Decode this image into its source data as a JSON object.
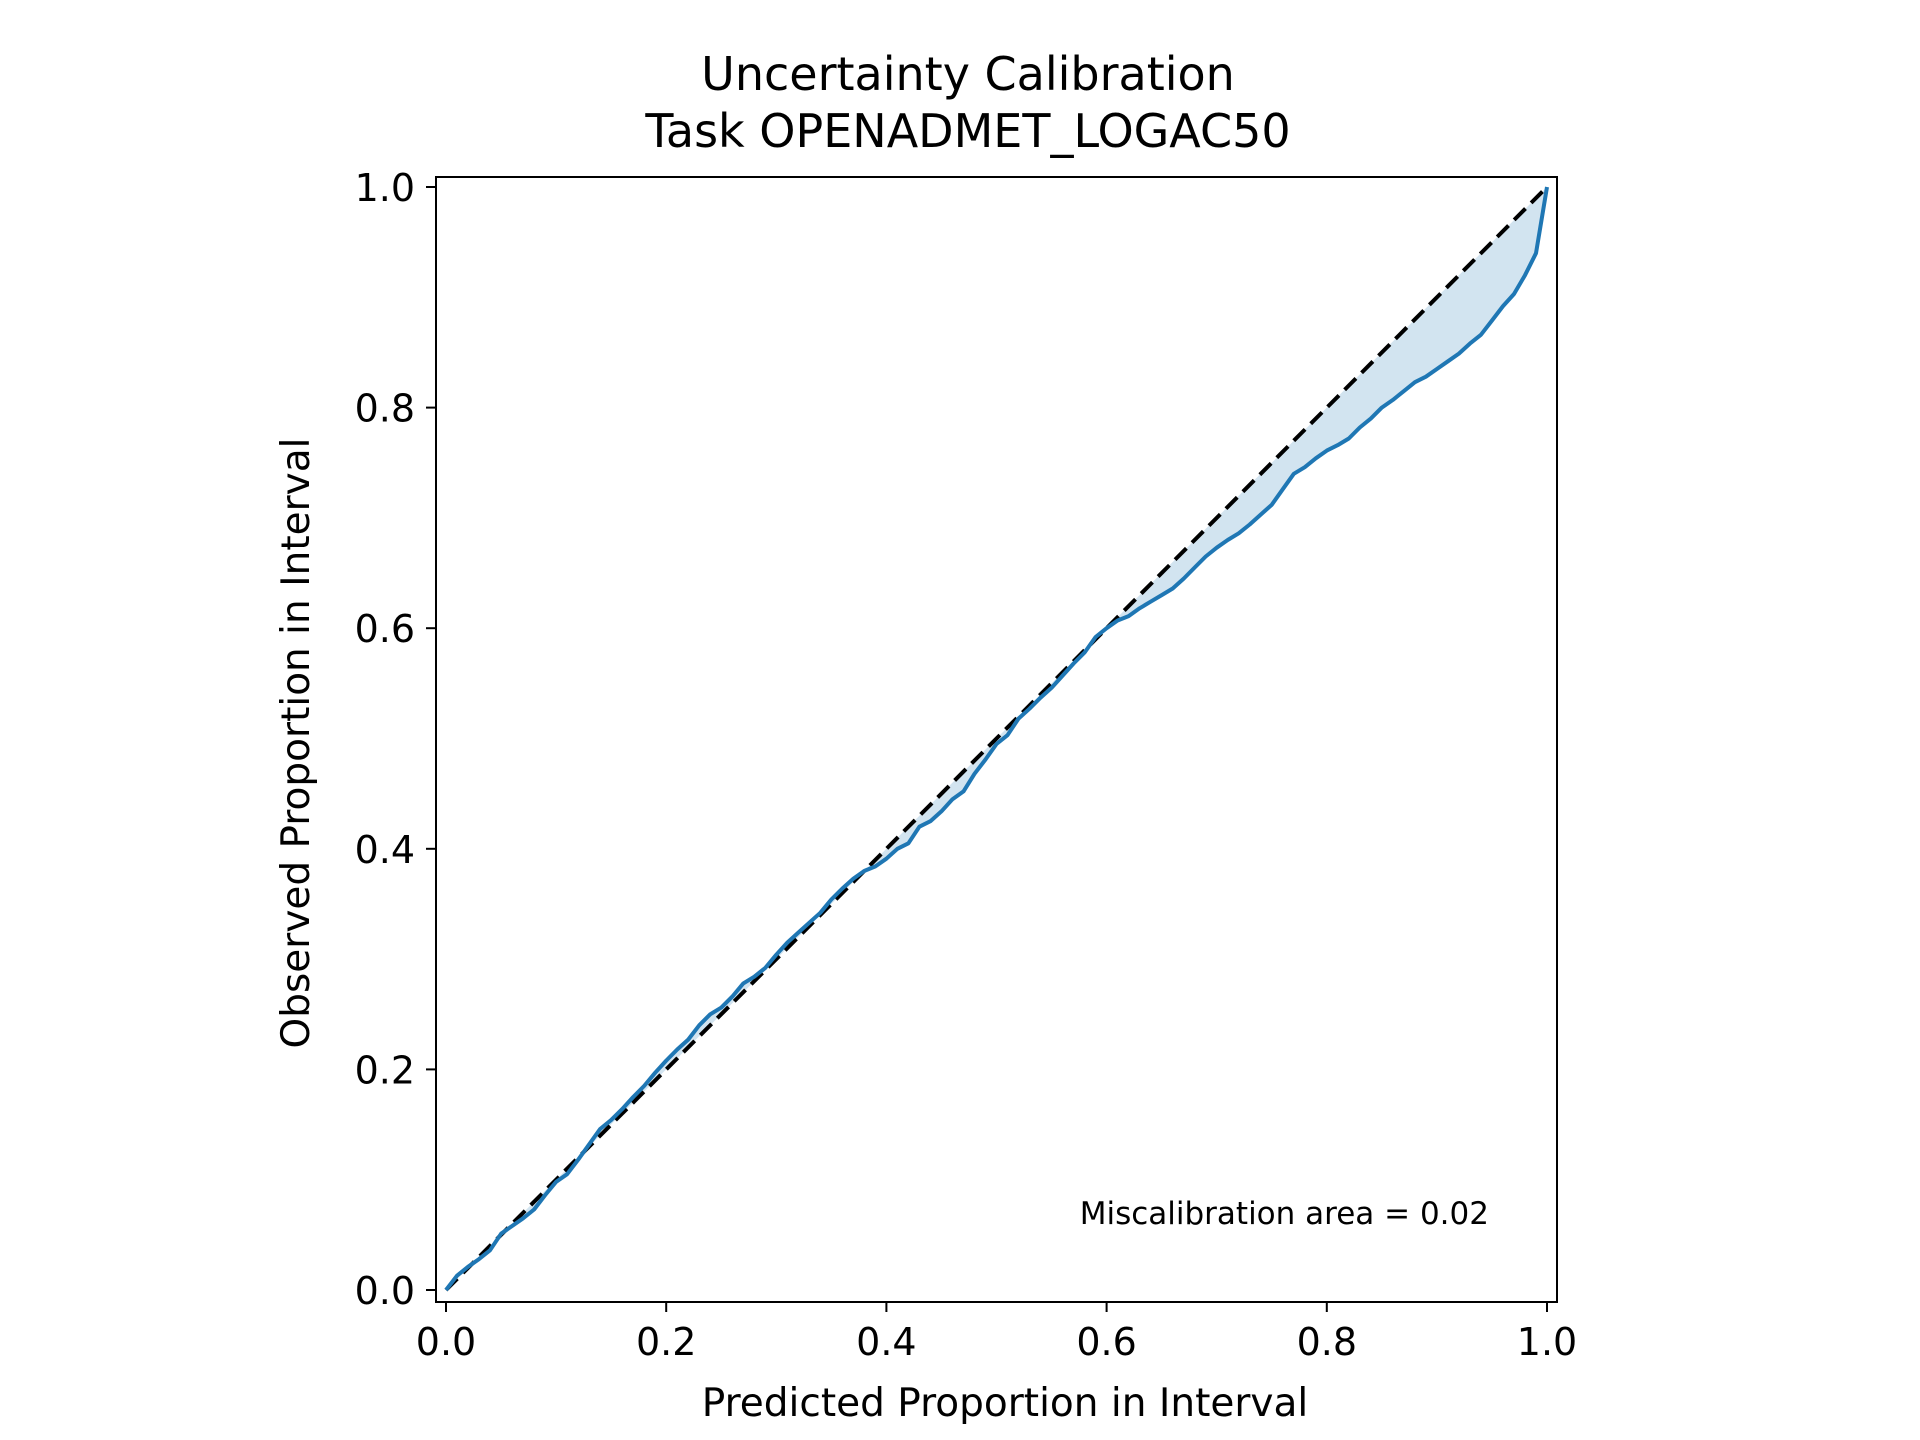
{
  "chart_data": {
    "type": "line",
    "title": "Uncertainty Calibration",
    "subtitle": "Task OPENADMET_LOGAC50",
    "xlabel": "Predicted Proportion in Interval",
    "ylabel": "Observed Proportion in Interval",
    "xlim": [
      0,
      1
    ],
    "ylim": [
      0,
      1
    ],
    "xticks": [
      0.0,
      0.2,
      0.4,
      0.6,
      0.8,
      1.0
    ],
    "yticks": [
      0.0,
      0.2,
      0.4,
      0.6,
      0.8,
      1.0
    ],
    "xtick_labels": [
      "0.0",
      "0.2",
      "0.4",
      "0.6",
      "0.8",
      "1.0"
    ],
    "ytick_labels": [
      "0.0",
      "0.2",
      "0.4",
      "0.6",
      "0.8",
      "1.0"
    ],
    "grid": false,
    "annotation": "Miscalibration area = 0.02",
    "colors": {
      "curve": "#1f77b4",
      "fill": "#1f77b4",
      "ideal": "#000000"
    },
    "series": [
      {
        "style": "dashed",
        "x": [
          0.0,
          1.0
        ],
        "y": [
          0.0,
          1.0
        ]
      },
      {
        "style": "solid",
        "x": [
          0.0,
          0.01,
          0.02,
          0.03,
          0.04,
          0.05,
          0.06,
          0.07,
          0.08,
          0.09,
          0.1,
          0.11,
          0.12,
          0.13,
          0.14,
          0.15,
          0.16,
          0.17,
          0.18,
          0.19,
          0.2,
          0.21,
          0.22,
          0.23,
          0.24,
          0.25,
          0.26,
          0.27,
          0.28,
          0.29,
          0.3,
          0.31,
          0.32,
          0.33,
          0.34,
          0.35,
          0.36,
          0.37,
          0.38,
          0.39,
          0.4,
          0.41,
          0.42,
          0.43,
          0.44,
          0.45,
          0.46,
          0.47,
          0.48,
          0.49,
          0.5,
          0.51,
          0.52,
          0.53,
          0.54,
          0.55,
          0.56,
          0.57,
          0.58,
          0.59,
          0.6,
          0.61,
          0.62,
          0.63,
          0.64,
          0.65,
          0.66,
          0.67,
          0.68,
          0.69,
          0.7,
          0.71,
          0.72,
          0.73,
          0.74,
          0.75,
          0.76,
          0.77,
          0.78,
          0.79,
          0.8,
          0.81,
          0.82,
          0.83,
          0.84,
          0.85,
          0.86,
          0.87,
          0.88,
          0.89,
          0.9,
          0.91,
          0.92,
          0.93,
          0.94,
          0.95,
          0.96,
          0.97,
          0.98,
          0.99,
          1.0
        ],
        "y": [
          0.0,
          0.013,
          0.021,
          0.028,
          0.036,
          0.051,
          0.058,
          0.065,
          0.073,
          0.086,
          0.098,
          0.105,
          0.118,
          0.132,
          0.146,
          0.154,
          0.164,
          0.175,
          0.185,
          0.197,
          0.208,
          0.218,
          0.227,
          0.24,
          0.25,
          0.256,
          0.266,
          0.278,
          0.284,
          0.292,
          0.304,
          0.315,
          0.324,
          0.333,
          0.342,
          0.354,
          0.364,
          0.373,
          0.38,
          0.384,
          0.391,
          0.4,
          0.405,
          0.42,
          0.425,
          0.434,
          0.445,
          0.452,
          0.468,
          0.481,
          0.495,
          0.503,
          0.518,
          0.527,
          0.537,
          0.546,
          0.557,
          0.568,
          0.578,
          0.592,
          0.6,
          0.607,
          0.611,
          0.618,
          0.624,
          0.63,
          0.636,
          0.645,
          0.655,
          0.665,
          0.673,
          0.68,
          0.686,
          0.694,
          0.703,
          0.712,
          0.726,
          0.74,
          0.746,
          0.754,
          0.761,
          0.766,
          0.772,
          0.782,
          0.79,
          0.8,
          0.807,
          0.815,
          0.823,
          0.828,
          0.835,
          0.842,
          0.849,
          0.858,
          0.866,
          0.879,
          0.892,
          0.903,
          0.92,
          0.94,
          1.0
        ]
      }
    ]
  }
}
